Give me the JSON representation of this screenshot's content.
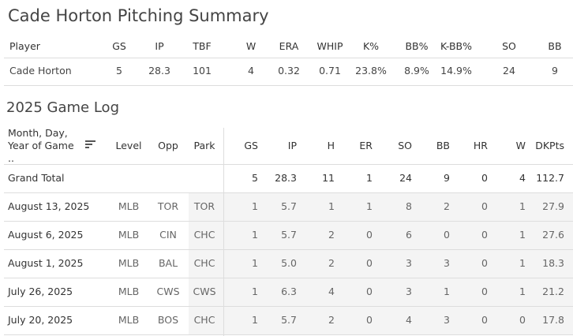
{
  "summary": {
    "title": "Cade Horton Pitching Summary",
    "columns": [
      "Player",
      "GS",
      "IP",
      "TBF",
      "W",
      "ERA",
      "WHIP",
      "K%",
      "BB%",
      "K-BB%",
      "SO",
      "BB"
    ],
    "rows": [
      [
        "Cade Horton",
        "5",
        "28.3",
        "101",
        "4",
        "0.32",
        "0.71",
        "23.8%",
        "8.9%",
        "14.9%",
        "24",
        "9"
      ]
    ]
  },
  "game_log": {
    "title": "2025 Game Log",
    "columns": [
      "Month, Day, Year of Game ..",
      "Level",
      "Opp",
      "Park",
      "GS",
      "IP",
      "H",
      "ER",
      "SO",
      "BB",
      "HR",
      "W",
      "DKPts"
    ],
    "total": {
      "label": "Grand Total",
      "values": [
        "5",
        "28.3",
        "11",
        "1",
        "24",
        "9",
        "0",
        "4",
        "112.7"
      ]
    },
    "rows": [
      [
        "August 13, 2025",
        "MLB",
        "TOR",
        "TOR",
        "1",
        "5.7",
        "1",
        "1",
        "8",
        "2",
        "0",
        "1",
        "27.9"
      ],
      [
        "August 6, 2025",
        "MLB",
        "CIN",
        "CHC",
        "1",
        "5.7",
        "2",
        "0",
        "6",
        "0",
        "0",
        "1",
        "27.6"
      ],
      [
        "August 1, 2025",
        "MLB",
        "BAL",
        "CHC",
        "1",
        "5.0",
        "2",
        "0",
        "3",
        "3",
        "0",
        "1",
        "18.3"
      ],
      [
        "July 26, 2025",
        "MLB",
        "CWS",
        "CWS",
        "1",
        "6.3",
        "4",
        "0",
        "3",
        "1",
        "0",
        "1",
        "21.2"
      ],
      [
        "July 20, 2025",
        "MLB",
        "BOS",
        "CHC",
        "1",
        "5.7",
        "2",
        "0",
        "4",
        "3",
        "0",
        "0",
        "17.8"
      ]
    ]
  }
}
